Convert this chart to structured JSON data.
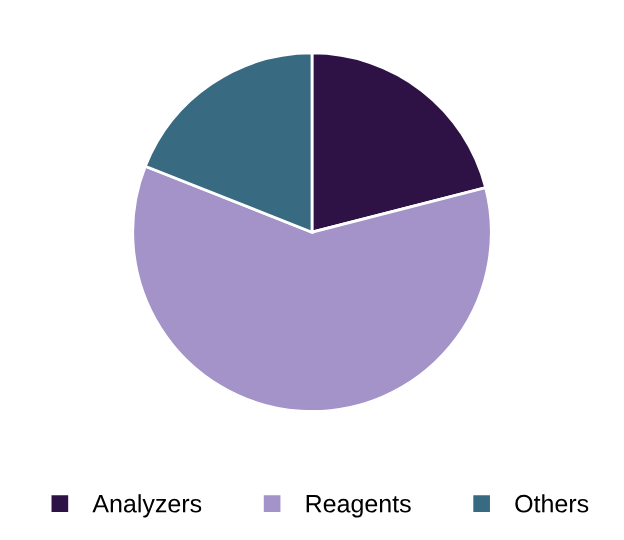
{
  "chart_data": {
    "type": "pie",
    "categories": [
      "Analyzers",
      "Reagents",
      "Others"
    ],
    "values": [
      21,
      60,
      19
    ],
    "colors": [
      "#2f1245",
      "#a393c8",
      "#386b82"
    ],
    "legend": "bottom"
  }
}
